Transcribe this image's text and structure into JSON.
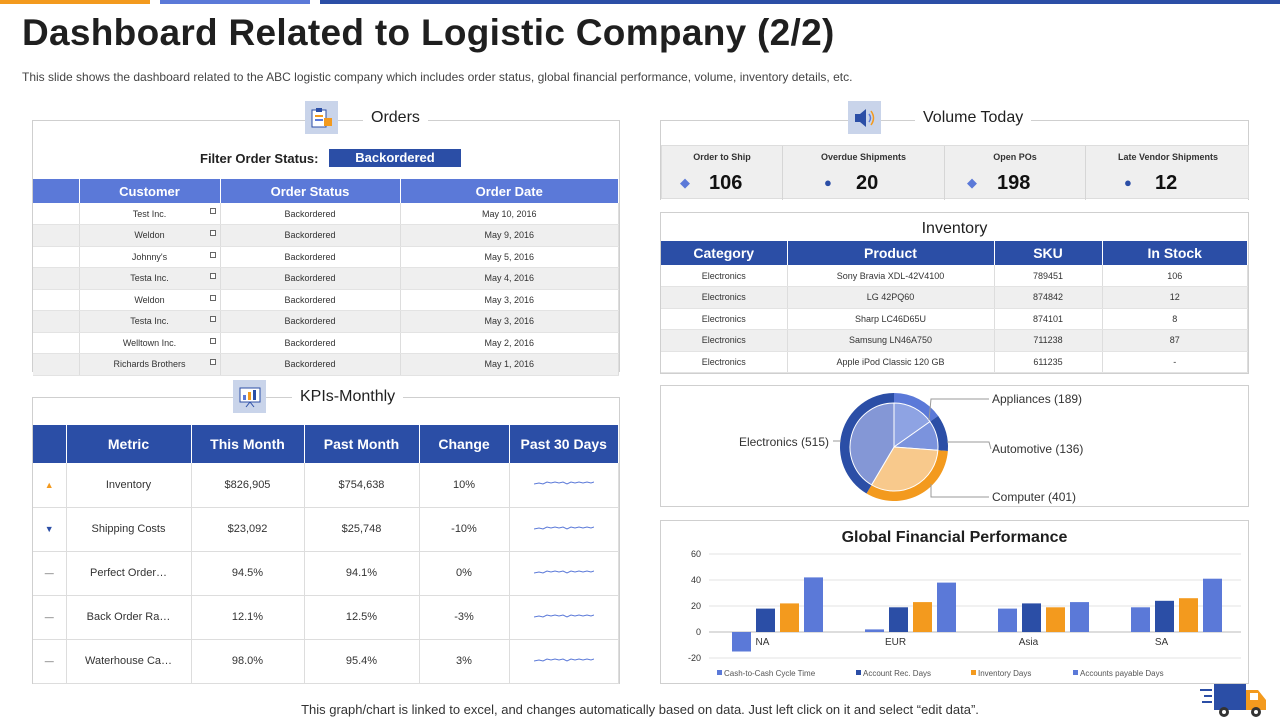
{
  "header": {
    "title": "Dashboard Related to Logistic Company (2/2)",
    "subtitle": "This slide shows the dashboard related to the ABC logistic company which includes order status, global financial performance, volume,  inventory details, etc."
  },
  "colors": {
    "accent_orange": "#f39a1e",
    "accent_blue": "#5b79d8",
    "dark_blue": "#2b4ea6"
  },
  "orders": {
    "title": "Orders",
    "icon": "clipboard-icon",
    "filter_label": "Filter Order Status:",
    "filter_value": "Backordered",
    "columns": [
      "Customer",
      "Order Status",
      "Order Date"
    ],
    "rows": [
      [
        "Test Inc.",
        "Backordered",
        "May 10, 2016"
      ],
      [
        "Weldon",
        "Backordered",
        "May 9, 2016"
      ],
      [
        "Johnny's",
        "Backordered",
        "May 5, 2016"
      ],
      [
        "Testa Inc.",
        "Backordered",
        "May 4, 2016"
      ],
      [
        "Weldon",
        "Backordered",
        "May 3, 2016"
      ],
      [
        "Testa Inc.",
        "Backordered",
        "May 3, 2016"
      ],
      [
        "Welltown Inc.",
        "Backordered",
        "May 2, 2016"
      ],
      [
        "Richards Brothers",
        "Backordered",
        "May 1, 2016"
      ]
    ]
  },
  "kpis": {
    "title": "KPIs-Monthly",
    "icon": "chart-board-icon",
    "columns": [
      "Metric",
      "This Month",
      "Past Month",
      "Change",
      "Past 30 Days"
    ],
    "rows": [
      {
        "indicator": "▲",
        "metric": "Inventory",
        "this_month": "$826,905",
        "past_month": "$754,638",
        "change": "10%"
      },
      {
        "indicator": "▼",
        "metric": "Shipping Costs",
        "this_month": "$23,092",
        "past_month": "$25,748",
        "change": "-10%"
      },
      {
        "indicator": "—",
        "metric": "Perfect Order…",
        "this_month": "94.5%",
        "past_month": "94.1%",
        "change": "0%"
      },
      {
        "indicator": "—",
        "metric": "Back Order Ra…",
        "this_month": "12.1%",
        "past_month": "12.5%",
        "change": "-3%"
      },
      {
        "indicator": "—",
        "metric": "Waterhouse Ca…",
        "this_month": "98.0%",
        "past_month": "95.4%",
        "change": "3%"
      }
    ]
  },
  "volume": {
    "title": "Volume Today",
    "icon": "speaker-icon",
    "items": [
      {
        "label": "Order to Ship",
        "value": "106",
        "marker": "◆"
      },
      {
        "label": "Overdue Shipments",
        "value": "20",
        "marker": "●"
      },
      {
        "label": "Open POs",
        "value": "198",
        "marker": "◆"
      },
      {
        "label": "Late Vendor Shipments",
        "value": "12",
        "marker": "●"
      }
    ]
  },
  "inventory": {
    "title": "Inventory",
    "columns": [
      "Category",
      "Product",
      "SKU",
      "In Stock"
    ],
    "rows": [
      [
        "Electronics",
        "Sony Bravia XDL-42V4100",
        "789451",
        "106"
      ],
      [
        "Electronics",
        "LG 42PQ60",
        "874842",
        "12"
      ],
      [
        "Electronics",
        "Sharp LC46D65U",
        "874101",
        "8"
      ],
      [
        "Electronics",
        "Samsung LN46A750",
        "711238",
        "87"
      ],
      [
        "Electronics",
        "Apple iPod Classic 120 GB",
        "611235",
        "-"
      ]
    ]
  },
  "chart_data": [
    {
      "type": "pie",
      "title": "",
      "categories": [
        "Appliances",
        "Automotive",
        "Computer",
        "Electronics"
      ],
      "values": [
        189,
        136,
        401,
        515
      ],
      "labels": [
        "Appliances (189)",
        "Automotive (136)",
        "Computer (401)",
        "Electronics (515)"
      ],
      "colors": [
        "#5b79d8",
        "#2b4ea6",
        "#f39a1e",
        "#2b4ea6"
      ]
    },
    {
      "type": "bar",
      "title": "Global Financial Performance",
      "categories": [
        "NA",
        "EUR",
        "Asia",
        "SA"
      ],
      "series": [
        {
          "name": "Cash-to-Cash Cycle Time",
          "values": [
            -15,
            2,
            18,
            19
          ],
          "color": "#5b79d8"
        },
        {
          "name": "Account Rec. Days",
          "values": [
            18,
            19,
            22,
            24
          ],
          "color": "#2b4ea6"
        },
        {
          "name": "Inventory Days",
          "values": [
            22,
            23,
            19,
            26
          ],
          "color": "#f39a1e"
        },
        {
          "name": "Accounts payable Days",
          "values": [
            42,
            38,
            23,
            41
          ],
          "color": "#5b79d8"
        }
      ],
      "yticks": [
        -20,
        0,
        20,
        40,
        60
      ],
      "ylim": [
        -20,
        60
      ],
      "legend": "bottom"
    }
  ],
  "footer": "This graph/chart is linked to excel, and changes automatically based on data. Just left click on it and select “edit data”."
}
